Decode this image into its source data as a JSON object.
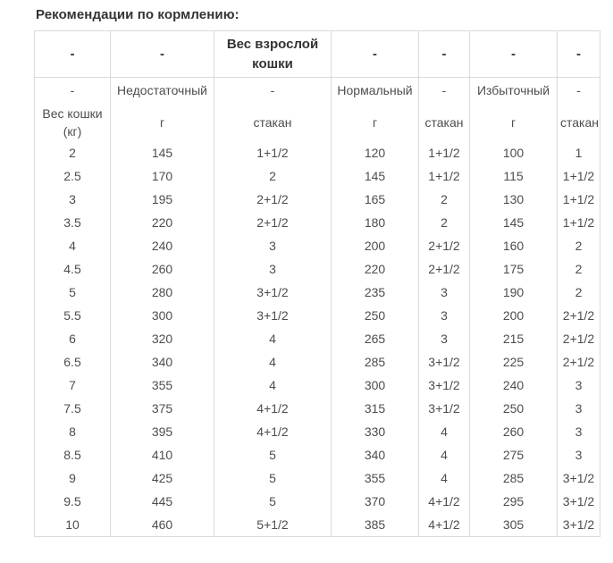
{
  "title": "Рекомендации по кормлению:",
  "colors": {
    "border": "#d9d9d9",
    "body_text": "#4d4d4d",
    "title_text": "#333333",
    "background": "#ffffff"
  },
  "table": {
    "header_row1": [
      "-",
      "-",
      "Вес взрослой кошки",
      "-",
      "-",
      "-",
      "-"
    ],
    "header_row2": [
      "-",
      "Недостаточный",
      "-",
      "Нормальный",
      "-",
      "Избыточный",
      "-"
    ],
    "header_row3": [
      "Вес кошки (кг)",
      "г",
      "стакан",
      "г",
      "стакан",
      "г",
      "стакан"
    ],
    "rows": [
      [
        "2",
        "145",
        "1+1/2",
        "120",
        "1+1/2",
        "100",
        "1"
      ],
      [
        "2.5",
        "170",
        "2",
        "145",
        "1+1/2",
        "115",
        "1+1/2"
      ],
      [
        "3",
        "195",
        "2+1/2",
        "165",
        "2",
        "130",
        "1+1/2"
      ],
      [
        "3.5",
        "220",
        "2+1/2",
        "180",
        "2",
        "145",
        "1+1/2"
      ],
      [
        "4",
        "240",
        "3",
        "200",
        "2+1/2",
        "160",
        "2"
      ],
      [
        "4.5",
        "260",
        "3",
        "220",
        "2+1/2",
        "175",
        "2"
      ],
      [
        "5",
        "280",
        "3+1/2",
        "235",
        "3",
        "190",
        "2"
      ],
      [
        "5.5",
        "300",
        "3+1/2",
        "250",
        "3",
        "200",
        "2+1/2"
      ],
      [
        "6",
        "320",
        "4",
        "265",
        "3",
        "215",
        "2+1/2"
      ],
      [
        "6.5",
        "340",
        "4",
        "285",
        "3+1/2",
        "225",
        "2+1/2"
      ],
      [
        "7",
        "355",
        "4",
        "300",
        "3+1/2",
        "240",
        "3"
      ],
      [
        "7.5",
        "375",
        "4+1/2",
        "315",
        "3+1/2",
        "250",
        "3"
      ],
      [
        "8",
        "395",
        "4+1/2",
        "330",
        "4",
        "260",
        "3"
      ],
      [
        "8.5",
        "410",
        "5",
        "340",
        "4",
        "275",
        "3"
      ],
      [
        "9",
        "425",
        "5",
        "355",
        "4",
        "285",
        "3+1/2"
      ],
      [
        "9.5",
        "445",
        "5",
        "370",
        "4+1/2",
        "295",
        "3+1/2"
      ],
      [
        "10",
        "460",
        "5+1/2",
        "385",
        "4+1/2",
        "305",
        "3+1/2"
      ]
    ]
  }
}
